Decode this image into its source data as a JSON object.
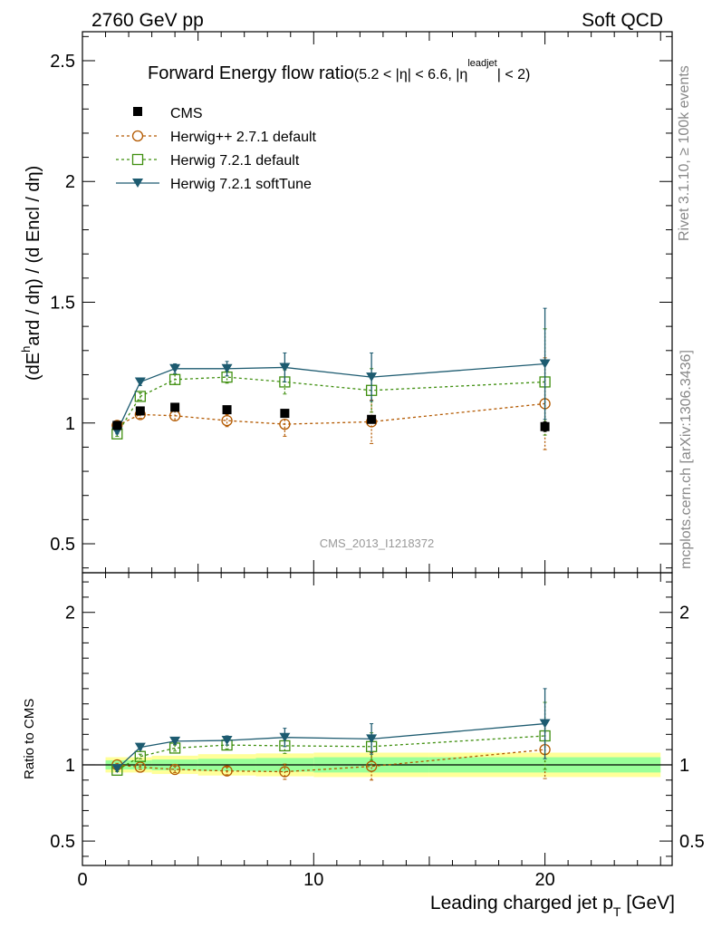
{
  "header": {
    "left": "2760 GeV pp",
    "right": "Soft QCD",
    "side_top": "Rivet 3.1.10, ≥ 100k events",
    "side_bottom": "mcplots.cern.ch [arXiv:1306.3436]",
    "watermark": "CMS_2013_I1218372"
  },
  "colors": {
    "cms": "#000000",
    "herwigpp": "#b35900",
    "herwig721": "#3f8f0f",
    "softtune": "#1d5b70",
    "band_inner": "#99ff99",
    "band_outer": "#ffff99"
  },
  "chart_data": [
    {
      "type": "scatter",
      "panel": "main",
      "title_main": "Forward Energy flow ratio",
      "title_sub": "(5.2 < |η| < 6.6, |η",
      "title_sup": "leadjet",
      "title_end": "| < 2)",
      "ylabel_a": "(dE",
      "ylabel_sup": "h",
      "ylabel_b": "ard / dη) / (d Encl / dη)",
      "ylim": [
        0.38,
        2.62
      ],
      "xlim": [
        0,
        25.5
      ],
      "yticks": [
        0.5,
        1,
        1.5,
        2,
        2.5
      ],
      "ytick_labels": [
        "0.5",
        "1",
        "1.5",
        "2",
        "2.5"
      ],
      "legend": [
        "CMS",
        "Herwig++ 2.7.1 default",
        "Herwig 7.2.1 default",
        "Herwig 7.2.1 softTune"
      ],
      "x": [
        1.5,
        2.5,
        4,
        6.25,
        8.75,
        12.5,
        20
      ],
      "series": [
        {
          "name": "CMS",
          "values": [
            0.99,
            1.05,
            1.065,
            1.055,
            1.04,
            1.015,
            0.985
          ],
          "err": [
            0.015,
            0.015,
            0.015,
            0.015,
            0.015,
            0.015,
            0.02
          ]
        },
        {
          "name": "Herwig++ 2.7.1 default",
          "values": [
            0.99,
            1.035,
            1.03,
            1.01,
            0.995,
            1.005,
            1.08
          ],
          "err": [
            0.01,
            0.015,
            0.02,
            0.025,
            0.05,
            0.09,
            0.19
          ]
        },
        {
          "name": "Herwig 7.2.1 default",
          "values": [
            0.955,
            1.11,
            1.18,
            1.19,
            1.17,
            1.135,
            1.17
          ],
          "err": [
            0.01,
            0.015,
            0.02,
            0.025,
            0.05,
            0.09,
            0.22
          ]
        },
        {
          "name": "Herwig 7.2.1 softTune",
          "values": [
            0.965,
            1.17,
            1.225,
            1.225,
            1.23,
            1.19,
            1.245
          ],
          "err": [
            0.01,
            0.015,
            0.02,
            0.03,
            0.06,
            0.1,
            0.23
          ]
        }
      ]
    },
    {
      "type": "scatter",
      "panel": "ratio",
      "ylabel": "Ratio to CMS",
      "xlabel_a": "Leading charged jet p",
      "xlabel_sub": "T",
      "xlabel_b": " [GeV]",
      "ylim": [
        0.34,
        2.26
      ],
      "xlim": [
        0,
        25.5
      ],
      "yticks": [
        0.5,
        1,
        2
      ],
      "ytick_labels": [
        "0.5",
        "1",
        "2"
      ],
      "xticks": [
        0,
        10,
        20
      ],
      "xtick_labels": [
        "0",
        "10",
        "20"
      ],
      "x": [
        1.5,
        2.5,
        4,
        6.25,
        8.75,
        12.5,
        20
      ],
      "series": [
        {
          "name": "Herwig++ 2.7.1 default",
          "values": [
            1.0,
            0.985,
            0.97,
            0.96,
            0.955,
            0.99,
            1.1
          ],
          "err": [
            0.01,
            0.015,
            0.02,
            0.025,
            0.05,
            0.09,
            0.19
          ]
        },
        {
          "name": "Herwig 7.2.1 default",
          "values": [
            0.965,
            1.055,
            1.11,
            1.13,
            1.125,
            1.12,
            1.19
          ],
          "err": [
            0.01,
            0.015,
            0.02,
            0.025,
            0.05,
            0.09,
            0.22
          ]
        },
        {
          "name": "Herwig 7.2.1 softTune",
          "values": [
            0.975,
            1.115,
            1.155,
            1.16,
            1.18,
            1.17,
            1.27
          ],
          "err": [
            0.01,
            0.015,
            0.02,
            0.03,
            0.06,
            0.1,
            0.23
          ]
        }
      ],
      "band_edges": [
        1,
        2,
        3,
        5,
        7.5,
        10,
        15,
        25
      ],
      "band_inner": [
        0.03,
        0.03,
        0.035,
        0.04,
        0.045,
        0.05,
        0.05
      ],
      "band_outer": [
        0.05,
        0.05,
        0.06,
        0.07,
        0.075,
        0.08,
        0.08
      ]
    }
  ]
}
